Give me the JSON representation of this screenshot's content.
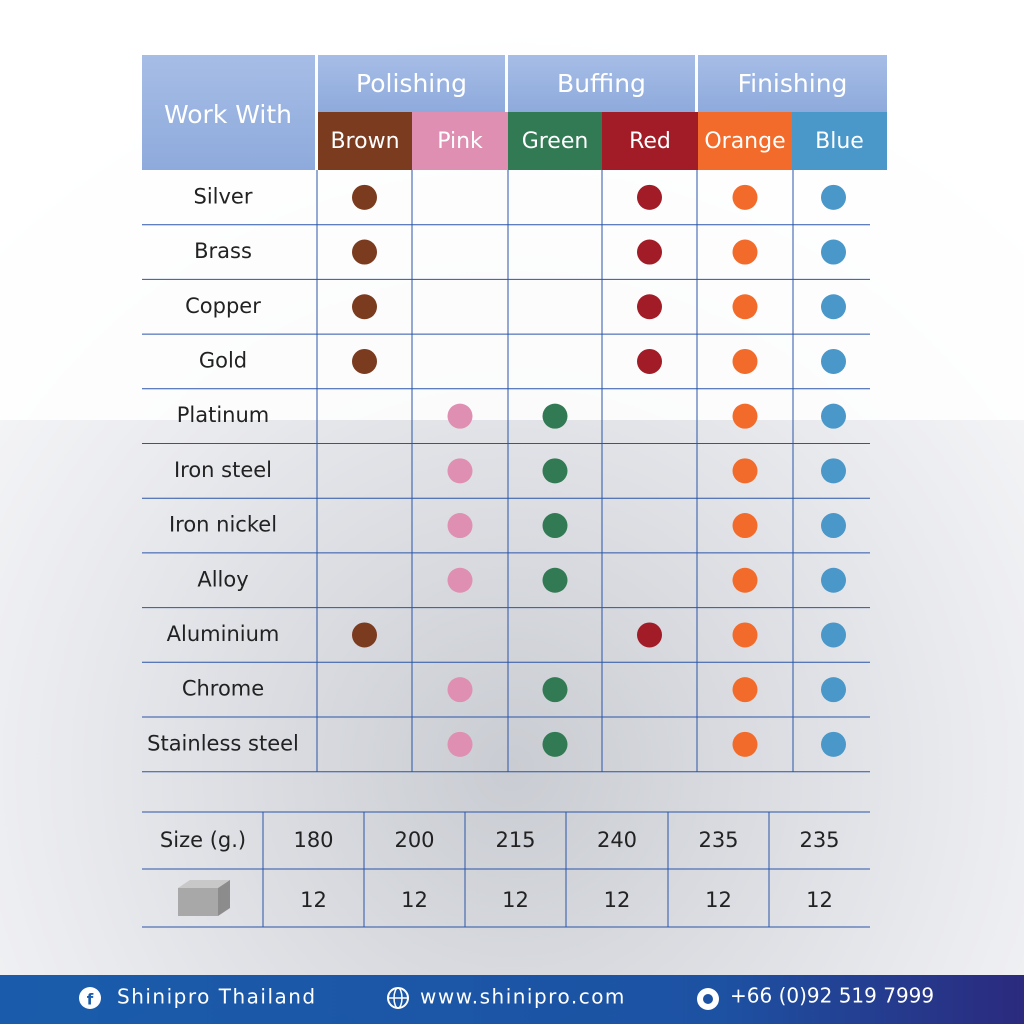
{
  "header": {
    "work_with": "Work With",
    "groups": [
      {
        "label": "Polishing",
        "columns": [
          {
            "name": "Brown",
            "color": "#7b3b1f"
          },
          {
            "name": "Pink",
            "color": "#df8fb1"
          }
        ]
      },
      {
        "label": "Buffing",
        "columns": [
          {
            "name": "Green",
            "color": "#327a54"
          },
          {
            "name": "Red",
            "color": "#a11c26"
          }
        ]
      },
      {
        "label": "Finishing",
        "columns": [
          {
            "name": "Orange",
            "color": "#f26b2a"
          },
          {
            "name": "Blue",
            "color": "#4a97c9"
          }
        ]
      }
    ]
  },
  "rows": [
    {
      "material": "Silver",
      "dots": [
        true,
        false,
        false,
        true,
        true,
        true
      ]
    },
    {
      "material": "Brass",
      "dots": [
        true,
        false,
        false,
        true,
        true,
        true
      ]
    },
    {
      "material": "Copper",
      "dots": [
        true,
        false,
        false,
        true,
        true,
        true
      ]
    },
    {
      "material": "Gold",
      "dots": [
        true,
        false,
        false,
        true,
        true,
        true
      ]
    },
    {
      "material": "Platinum",
      "dots": [
        false,
        true,
        true,
        false,
        true,
        true
      ]
    },
    {
      "material": "Iron steel",
      "dots": [
        false,
        true,
        true,
        false,
        true,
        true
      ]
    },
    {
      "material": "Iron nickel",
      "dots": [
        false,
        true,
        true,
        false,
        true,
        true
      ]
    },
    {
      "material": "Alloy",
      "dots": [
        false,
        true,
        true,
        false,
        true,
        true
      ]
    },
    {
      "material": "Aluminium",
      "dots": [
        true,
        false,
        false,
        true,
        true,
        true
      ]
    },
    {
      "material": "Chrome",
      "dots": [
        false,
        true,
        true,
        false,
        true,
        true
      ]
    },
    {
      "material": "Stainless steel",
      "dots": [
        false,
        true,
        true,
        false,
        true,
        true
      ]
    }
  ],
  "sizes": {
    "label": "Size (g.)",
    "values": [
      180,
      200,
      215,
      240,
      235,
      235
    ],
    "counts": [
      12,
      12,
      12,
      12,
      12,
      12
    ]
  },
  "footer": {
    "facebook": "Shinipro Thailand",
    "website": "www.shinipro.com",
    "phone": "+66 (0)92 519 7999"
  }
}
